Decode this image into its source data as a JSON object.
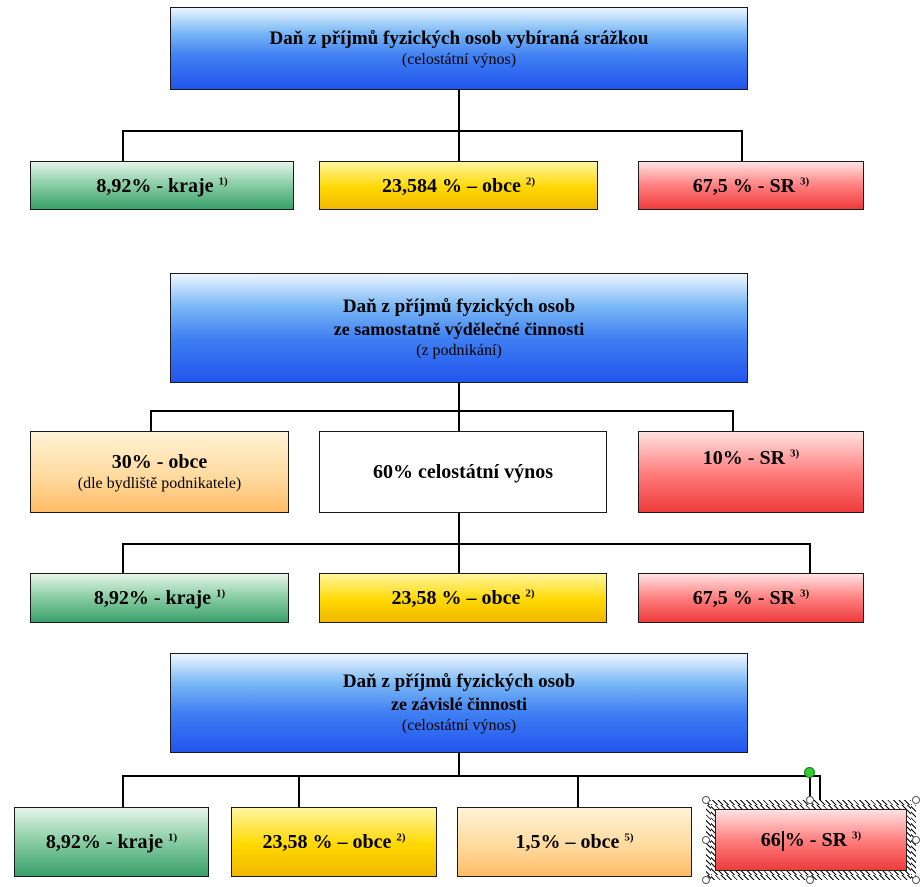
{
  "section1": {
    "header": {
      "title": "Daň z příjmů fyzických osob vybíraná srážkou",
      "sub": "(celostátní výnos)"
    },
    "boxes": [
      {
        "text": "8,92% - kraje",
        "sup": "1)"
      },
      {
        "text": "23,584 % – obce",
        "sup": "2)"
      },
      {
        "text": "67,5 % - SR",
        "sup": "3)"
      }
    ]
  },
  "section2": {
    "header": {
      "title1": "Daň z příjmů fyzických osob",
      "title2": "ze samostatně výdělečné činnosti",
      "sub": "(z podnikání)"
    },
    "split": [
      {
        "text": "30% - obce",
        "sub": "(dle bydliště podnikatele)"
      },
      {
        "text": "60% celostátní výnos"
      },
      {
        "text": "10% - SR",
        "sup": "3)"
      }
    ],
    "boxes": [
      {
        "text": "8,92% - kraje",
        "sup": "1)"
      },
      {
        "text": "23,58 % – obce",
        "sup": "2)"
      },
      {
        "text": "67,5 % - SR",
        "sup": "3)"
      }
    ]
  },
  "section3": {
    "header": {
      "title1": "Daň z příjmů fyzických osob",
      "title2": "ze závislé činnosti",
      "sub": "(celostátní výnos)"
    },
    "boxes": [
      {
        "text": "8,92% - kraje",
        "sup": "1)"
      },
      {
        "text": "23,58 % – obce",
        "sup": "2)"
      },
      {
        "text": "1,5% – obce",
        "sup": "5)"
      },
      {
        "text_a": "66",
        "text_b": "% - SR",
        "sup": "3)"
      }
    ]
  }
}
